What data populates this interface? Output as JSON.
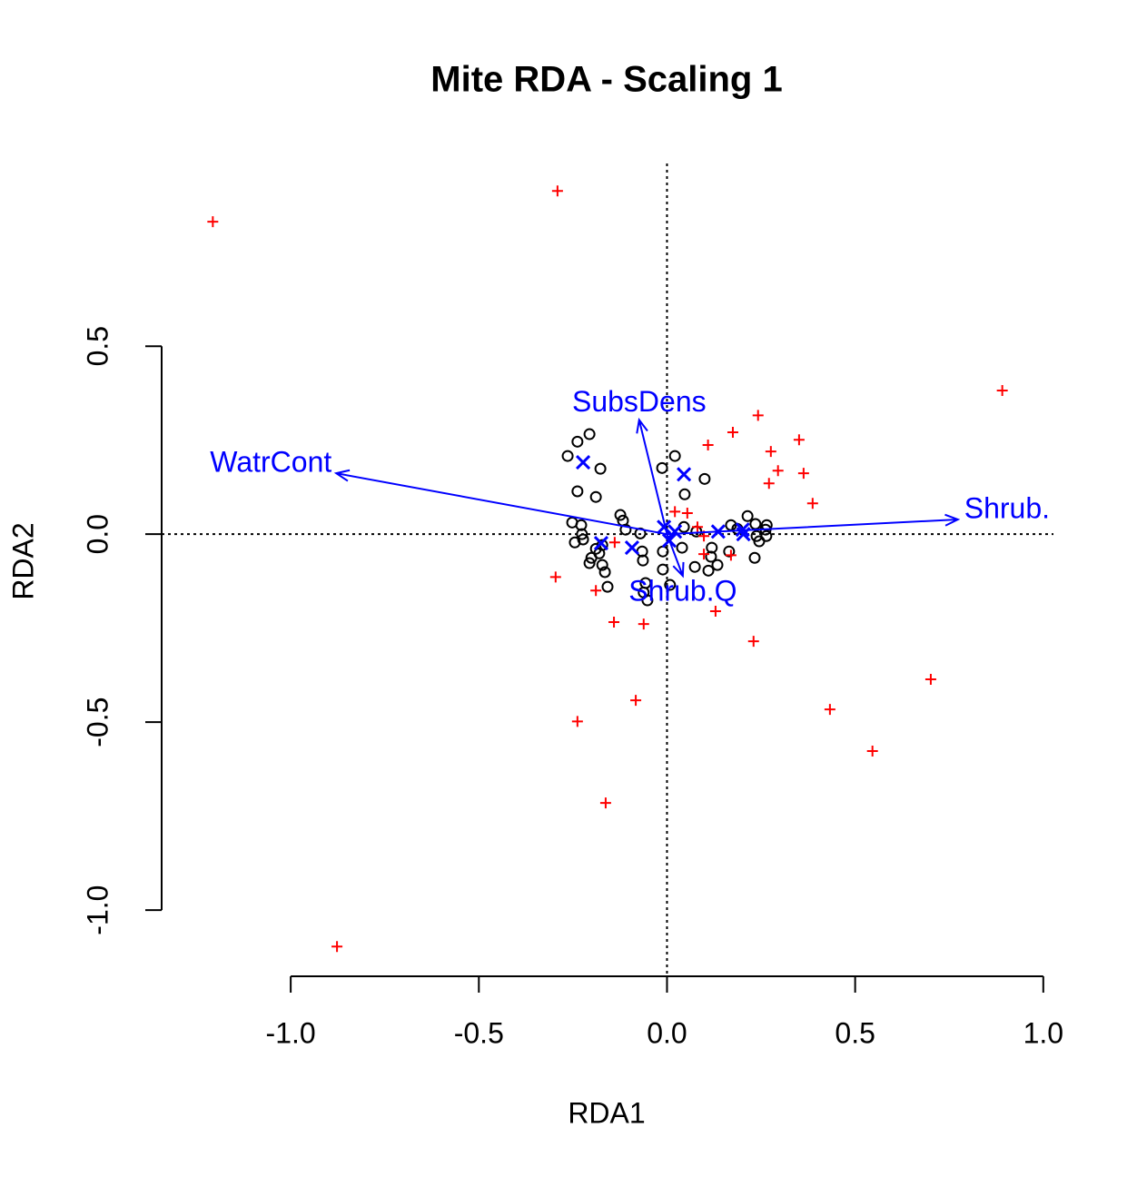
{
  "chart_data": {
    "type": "biplot",
    "title": "Mite RDA - Scaling 1",
    "xlabel": "RDA1",
    "ylabel": "RDA2",
    "xlim": [
      -1.343,
      1.027
    ],
    "ylim": [
      -1.176,
      0.986
    ],
    "xticks": [
      {
        "value": -1,
        "label": "-1.0"
      },
      {
        "value": -0.5,
        "label": "-0.5"
      },
      {
        "value": 0,
        "label": "0.0"
      },
      {
        "value": 0.5,
        "label": "0.5"
      },
      {
        "value": 1,
        "label": "1.0"
      }
    ],
    "yticks": [
      {
        "value": -1,
        "label": "-1.0"
      },
      {
        "value": -0.5,
        "label": "-0.5"
      },
      {
        "value": 0,
        "label": "0.0"
      },
      {
        "value": 0.5,
        "label": "0.5"
      }
    ],
    "sites": {
      "color": "#000000",
      "x": [
        -0.206,
        -0.238,
        -0.264,
        0.021,
        -0.177,
        -0.013,
        0.1,
        -0.238,
        -0.189,
        0.047,
        -0.124,
        -0.117,
        -0.252,
        -0.228,
        -0.11,
        -0.071,
        -0.245,
        -0.223,
        -0.226,
        -0.189,
        -0.172,
        -0.18,
        -0.201,
        -0.206,
        -0.172,
        -0.165,
        -0.158,
        -0.066,
        -0.064,
        -0.011,
        -0.011,
        0.008,
        -0.057,
        -0.062,
        -0.052,
        0.04,
        0.045,
        0.078,
        0.119,
        0.117,
        0.134,
        0.165,
        0.11,
        0.074,
        0.17,
        0.214,
        0.235,
        0.238,
        0.245,
        0.233,
        0.262,
        0.265,
        0.264,
        0.187
      ],
      "y": [
        0.266,
        0.246,
        0.208,
        0.208,
        0.174,
        0.176,
        0.147,
        0.114,
        0.099,
        0.106,
        0.051,
        0.036,
        0.031,
        0.024,
        0.012,
        0.002,
        -0.022,
        -0.014,
        0.0,
        -0.039,
        -0.029,
        -0.051,
        -0.063,
        -0.077,
        -0.082,
        -0.101,
        -0.14,
        -0.046,
        -0.07,
        -0.046,
        -0.094,
        -0.135,
        -0.13,
        -0.155,
        -0.176,
        -0.036,
        0.019,
        0.007,
        -0.036,
        -0.06,
        -0.082,
        -0.046,
        -0.097,
        -0.087,
        0.024,
        0.048,
        0.027,
        -0.005,
        -0.019,
        -0.063,
        0.012,
        0.024,
        -0.005,
        0.014
      ]
    },
    "species": {
      "color": "#ff0000",
      "x": [
        -1.207,
        -0.291,
        0.891,
        -0.877,
        0.242,
        0.175,
        0.109,
        0.276,
        0.351,
        0.295,
        0.363,
        0.271,
        0.387,
        0.021,
        0.054,
        0.081,
        0.098,
        0.098,
        0.17,
        -0.296,
        -0.189,
        -0.139,
        0.129,
        -0.141,
        -0.062,
        0.23,
        0.701,
        -0.083,
        0.433,
        -0.238,
        0.546,
        -0.163
      ],
      "y": [
        0.831,
        0.913,
        0.382,
        -1.097,
        0.316,
        0.271,
        0.237,
        0.22,
        0.251,
        0.169,
        0.162,
        0.135,
        0.082,
        0.06,
        0.056,
        0.019,
        -0.005,
        -0.053,
        -0.056,
        -0.114,
        -0.15,
        -0.022,
        -0.205,
        -0.234,
        -0.239,
        -0.285,
        -0.386,
        -0.442,
        -0.466,
        -0.498,
        -0.577,
        -0.715
      ]
    },
    "centroids": {
      "color": "#0000ff",
      "x": [
        -0.223,
        0.045,
        -0.175,
        -0.093,
        -0.008,
        0.021,
        0.006,
        0.136,
        0.201,
        0.203
      ],
      "y": [
        0.191,
        0.159,
        -0.024,
        -0.036,
        0.019,
        0.007,
        -0.017,
        0.007,
        0.012,
        0.0
      ]
    },
    "arrow_color": "#0000ff",
    "arrows": [
      {
        "label": "WatrCont",
        "x": -0.879,
        "y": 0.162
      },
      {
        "label": "SubsDens",
        "x": -0.074,
        "y": 0.304
      },
      {
        "label": "Shrub.",
        "x": 0.773,
        "y": 0.039
      },
      {
        "label": "Shrub.Q",
        "x": 0.042,
        "y": -0.111
      }
    ]
  }
}
